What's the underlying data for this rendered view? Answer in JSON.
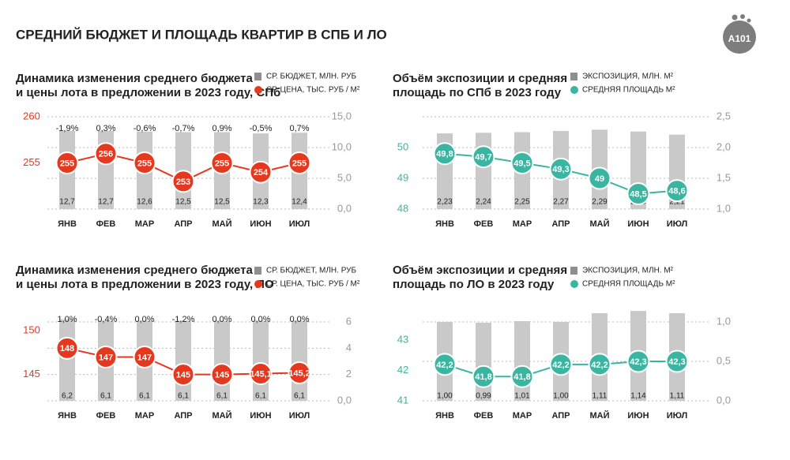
{
  "header": {
    "title": "СРЕДНИЙ БЮДЖЕТ И ПЛОЩАДЬ КВАРТИР В СПБ И ЛО",
    "logo": "А101"
  },
  "chart_data": [
    {
      "type": "combo",
      "title": [
        "Динамика изменения среднего бюджета",
        "и цены лота в предложении в 2023 году, СПб"
      ],
      "categories": [
        "ЯНВ",
        "ФЕВ",
        "МАР",
        "АПР",
        "МАЙ",
        "ИЮН",
        "ИЮЛ"
      ],
      "annotations": [
        "-1,9%",
        "0,3%",
        "-0,6%",
        "-0,7%",
        "0,9%",
        "-0,5%",
        "0,7%"
      ],
      "series": [
        {
          "name": "СР. БЮДЖЕТ, МЛН. РУБ",
          "type": "bar",
          "axis": "y2",
          "color": "#c9c9c9",
          "values": [
            12.7,
            12.7,
            12.6,
            12.5,
            12.5,
            12.3,
            12.4
          ],
          "value_labels": [
            "12,7",
            "12,7",
            "12,6",
            "12,5",
            "12,5",
            "12,3",
            "12,4"
          ]
        },
        {
          "name": "СР. ЦЕНА, ТЫС. РУБ / М²",
          "type": "line",
          "color": "#e5391f",
          "values": [
            255,
            256,
            255,
            253,
            255,
            254,
            255
          ]
        }
      ],
      "ylim": [
        250,
        260
      ],
      "yticks": [
        255,
        260
      ],
      "y2lim": [
        0,
        15
      ],
      "y2ticks": [
        {
          "value": 0,
          "label": "0,0"
        },
        {
          "value": 5,
          "label": "5,0"
        },
        {
          "value": 10,
          "label": "10,0"
        },
        {
          "value": 15,
          "label": "15,0"
        }
      ],
      "grid": true
    },
    {
      "type": "combo",
      "title": [
        "Объём экспозиции и средняя",
        "площадь по СПб в 2023 году"
      ],
      "categories": [
        "ЯНВ",
        "ФЕВ",
        "МАР",
        "АПР",
        "МАЙ",
        "ИЮН",
        "ИЮЛ"
      ],
      "series": [
        {
          "name": "ЭКСПОЗИЦИЯ, МЛН. М²",
          "type": "bar",
          "axis": "y2",
          "color": "#c9c9c9",
          "values": [
            2.23,
            2.24,
            2.25,
            2.27,
            2.29,
            2.26,
            2.21
          ],
          "value_labels": [
            "2,23",
            "2,24",
            "2,25",
            "2,27",
            "2,29",
            "2,26",
            "2,21"
          ]
        },
        {
          "name": "СРЕДНЯЯ ПЛОЩАДЬ  М²",
          "type": "line",
          "color": "#3ab5a2",
          "values": [
            49.8,
            49.7,
            49.5,
            49.3,
            49,
            48.5,
            48.6
          ],
          "value_labels": [
            "49,8",
            "49,7",
            "49,5",
            "49,3",
            "49",
            "48,5",
            "48,6"
          ]
        }
      ],
      "ylim": [
        48,
        51
      ],
      "yticks": [
        48,
        49,
        50
      ],
      "y2lim": [
        1,
        2.5
      ],
      "y2ticks": [
        {
          "value": 1,
          "label": "1,0"
        },
        {
          "value": 1.5,
          "label": "1,5"
        },
        {
          "value": 2,
          "label": "2,0"
        },
        {
          "value": 2.5,
          "label": "2,5"
        }
      ],
      "grid": true
    },
    {
      "type": "combo",
      "title": [
        "Динамика изменения среднего бюджета",
        "и цены лота в предложении в 2023 году, ЛО"
      ],
      "categories": [
        "ЯНВ",
        "ФЕВ",
        "МАР",
        "АПР",
        "МАЙ",
        "ИЮН",
        "ИЮЛ"
      ],
      "annotations": [
        "1,0%",
        "-0,4%",
        "0,0%",
        "-1,2%",
        "0,0%",
        "0,0%",
        "0,0%"
      ],
      "series": [
        {
          "name": "СР. БЮДЖЕТ, МЛН. РУБ",
          "type": "bar",
          "axis": "y2",
          "color": "#c9c9c9",
          "values": [
            6.2,
            6.1,
            6.1,
            6.1,
            6.1,
            6.1,
            6.1
          ],
          "value_labels": [
            "6,2",
            "6,1",
            "6,1",
            "6,1",
            "6,1",
            "6,1",
            "6,1"
          ]
        },
        {
          "name": "СР. ЦЕНА, ТЫС. РУБ / М²",
          "type": "line",
          "color": "#e5391f",
          "values": [
            148,
            147,
            147,
            145,
            145,
            145.1,
            145.2
          ],
          "value_labels": [
            "148",
            "147",
            "147",
            "145",
            "145",
            "145,1",
            "145,2"
          ]
        }
      ],
      "ylim": [
        142,
        151
      ],
      "yticks": [
        145,
        150
      ],
      "y2lim": [
        0,
        6
      ],
      "y2ticks": [
        {
          "value": 0,
          "label": "0,0"
        },
        2,
        4,
        6
      ],
      "grid": true
    },
    {
      "type": "combo",
      "title": [
        "Объём экспозиции и средняя",
        "площадь по ЛО в 2023 году"
      ],
      "categories": [
        "ЯНВ",
        "ФЕВ",
        "МАР",
        "АПР",
        "МАЙ",
        "ИЮН",
        "ИЮЛ"
      ],
      "series": [
        {
          "name": "ЭКСПОЗИЦИЯ, МЛН. М²",
          "type": "bar",
          "axis": "y2",
          "color": "#c9c9c9",
          "values": [
            1.0,
            0.99,
            1.01,
            1.0,
            1.11,
            1.14,
            1.11
          ],
          "value_labels": [
            "1,00",
            "0,99",
            "1,01",
            "1,00",
            "1,11",
            "1,14",
            "1,11"
          ]
        },
        {
          "name": "СРЕДНЯЯ ПЛОЩАДЬ  М²",
          "type": "line",
          "color": "#3ab5a2",
          "values": [
            42.2,
            41.8,
            41.8,
            42.2,
            42.2,
            42.3,
            42.3
          ],
          "value_labels": [
            "42,2",
            "41,8",
            "41,8",
            "42,2",
            "42,2",
            "42,3",
            "42,3"
          ]
        }
      ],
      "ylim": [
        41,
        43.6
      ],
      "yticks": [
        41,
        42,
        43
      ],
      "y2lim": [
        0,
        1
      ],
      "y2ticks": [
        {
          "value": 0,
          "label": "0,0"
        },
        {
          "value": 0.5,
          "label": "0,5"
        },
        {
          "value": 1,
          "label": "1,0"
        }
      ],
      "grid": true
    }
  ]
}
